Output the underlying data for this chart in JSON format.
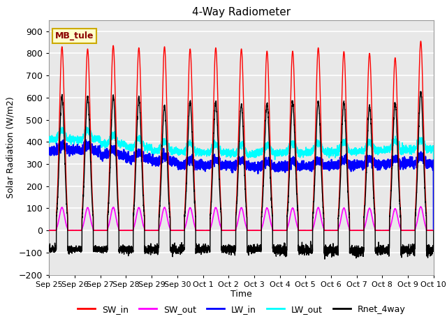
{
  "title": "4-Way Radiometer",
  "xlabel": "Time",
  "ylabel": "Solar Radiation (W/m2)",
  "ylim": [
    -200,
    950
  ],
  "yticks": [
    -200,
    -100,
    0,
    100,
    200,
    300,
    400,
    500,
    600,
    700,
    800,
    900
  ],
  "x_labels": [
    "Sep 25",
    "Sep 26",
    "Sep 27",
    "Sep 28",
    "Sep 29",
    "Sep 30",
    "Oct 1",
    "Oct 2",
    "Oct 3",
    "Oct 4",
    "Oct 5",
    "Oct 6",
    "Oct 7",
    "Oct 8",
    "Oct 9",
    "Oct 10"
  ],
  "num_days": 15,
  "site_label": "MB_tule",
  "fig_bg": "#ffffff",
  "plot_bg": "#e8e8e8",
  "grid_color": "#ffffff",
  "legend_entries": [
    "SW_in",
    "SW_out",
    "LW_in",
    "LW_out",
    "Rnet_4way"
  ],
  "line_colors": [
    "red",
    "magenta",
    "blue",
    "cyan",
    "black"
  ],
  "sw_in_peaks": [
    830,
    820,
    835,
    825,
    830,
    820,
    825,
    820,
    810,
    810,
    825,
    808,
    800,
    780,
    855
  ],
  "rnet_peaks": [
    605,
    605,
    610,
    600,
    560,
    580,
    580,
    570,
    575,
    580,
    580,
    580,
    560,
    575,
    625
  ]
}
